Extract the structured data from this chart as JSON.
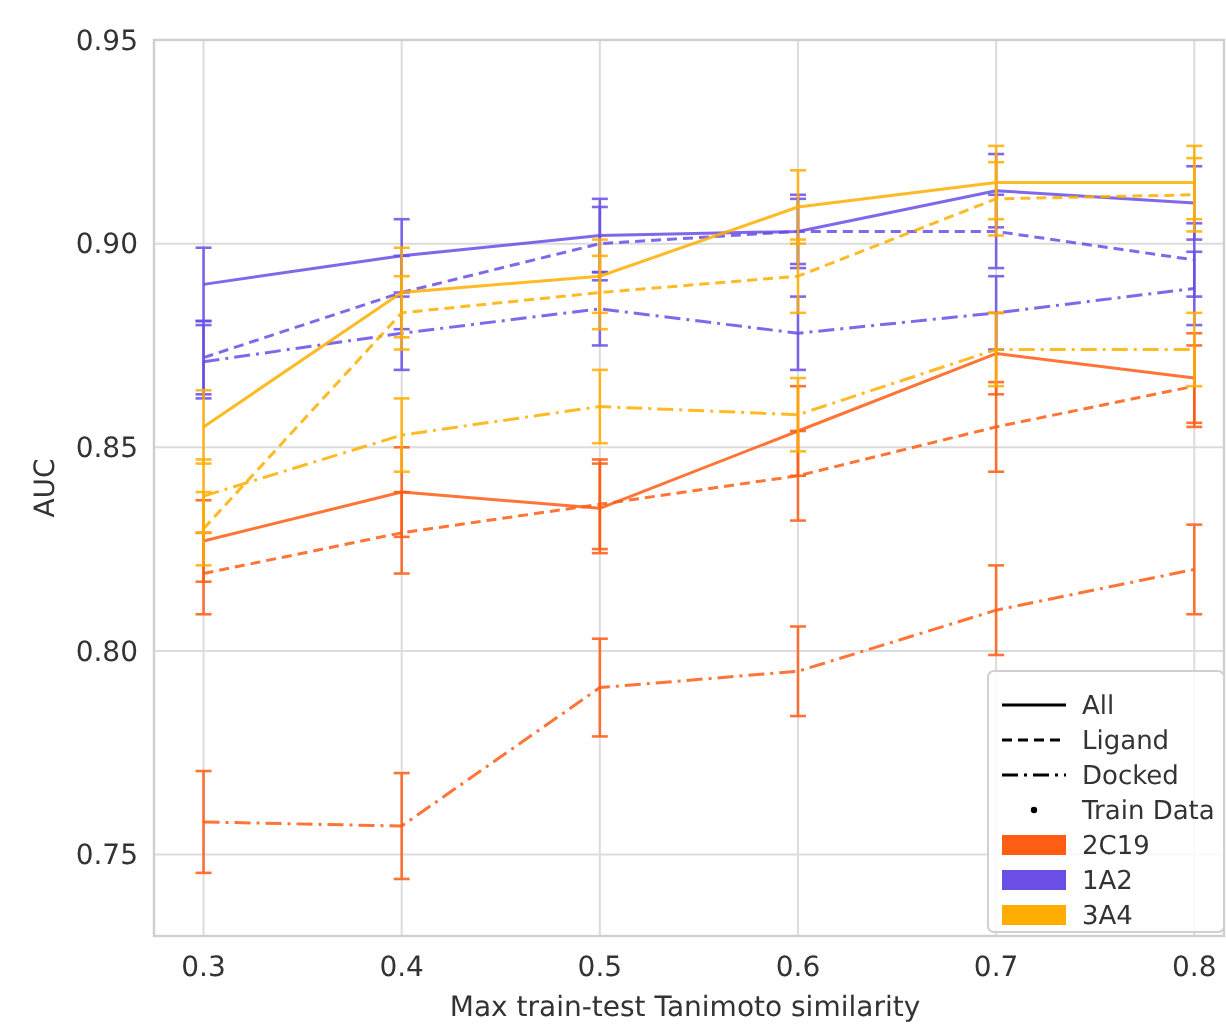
{
  "chart_data": {
    "type": "line",
    "xlabel": "Max train-test Tanimoto similarity",
    "ylabel": "AUC",
    "x": [
      0.3,
      0.4,
      0.5,
      0.6,
      0.7,
      0.8
    ],
    "xlim": [
      0.275,
      0.815
    ],
    "xticks": [
      0.3,
      0.4,
      0.5,
      0.6,
      0.7,
      0.8
    ],
    "ylim": [
      0.73,
      0.95
    ],
    "yticks": [
      {
        "value": 0.75,
        "label": "0.75"
      },
      {
        "value": 0.8,
        "label": "0.80"
      },
      {
        "value": 0.85,
        "label": "0.85"
      },
      {
        "value": 0.9,
        "label": "0.90"
      },
      {
        "value": 0.95,
        "label": "0.95"
      }
    ],
    "grid": true,
    "legend": "bottom right",
    "series": [
      {
        "color": "#ff5c14",
        "line_style": "solid",
        "values": [
          0.827,
          0.839,
          0.835,
          0.854,
          0.873,
          0.867
        ],
        "errors": [
          0.01,
          0.011,
          0.011,
          0.011,
          0.01,
          0.011
        ]
      },
      {
        "color": "#ff5c14",
        "line_style": "dashed",
        "values": [
          0.819,
          0.829,
          0.836,
          0.843,
          0.855,
          0.865
        ],
        "errors": [
          0.01,
          0.01,
          0.011,
          0.011,
          0.011,
          0.01
        ]
      },
      {
        "color": "#ff5c14",
        "line_style": "dashdot",
        "values": [
          0.758,
          0.757,
          0.791,
          0.795,
          0.81,
          0.82
        ],
        "errors": [
          0.0125,
          0.013,
          0.012,
          0.011,
          0.011,
          0.011
        ]
      },
      {
        "color": "#6a4ee6",
        "line_style": "solid",
        "values": [
          0.89,
          0.897,
          0.902,
          0.903,
          0.913,
          0.91
        ],
        "errors": [
          0.009,
          0.009,
          0.009,
          0.009,
          0.009,
          0.009
        ]
      },
      {
        "color": "#6a4ee6",
        "line_style": "dashed",
        "values": [
          0.872,
          0.888,
          0.9,
          0.903,
          0.903,
          0.896
        ],
        "errors": [
          0.009,
          0.009,
          0.009,
          0.008,
          0.009,
          0.009
        ]
      },
      {
        "color": "#6a4ee6",
        "line_style": "dashdot",
        "values": [
          0.871,
          0.878,
          0.884,
          0.878,
          0.883,
          0.889
        ],
        "errors": [
          0.009,
          0.009,
          0.009,
          0.009,
          0.009,
          0.009
        ]
      },
      {
        "color": "#ffae00",
        "line_style": "solid",
        "values": [
          0.855,
          0.888,
          0.892,
          0.909,
          0.915,
          0.915
        ],
        "errors": [
          0.009,
          0.011,
          0.009,
          0.009,
          0.009,
          0.009
        ]
      },
      {
        "color": "#ffae00",
        "line_style": "dashed",
        "values": [
          0.83,
          0.883,
          0.888,
          0.892,
          0.911,
          0.912
        ],
        "errors": [
          0.009,
          0.009,
          0.009,
          0.009,
          0.009,
          0.009
        ]
      },
      {
        "color": "#ffae00",
        "line_style": "dashdot",
        "values": [
          0.838,
          0.853,
          0.86,
          0.858,
          0.874,
          0.874
        ],
        "errors": [
          0.009,
          0.009,
          0.009,
          0.009,
          0.009,
          0.009
        ]
      },
      {
        "name": "All",
        "color": "#000000",
        "line_style": "solid",
        "values": [
          null,
          null,
          null,
          null,
          null,
          null
        ]
      },
      {
        "name": "Ligand",
        "color": "#000000",
        "line_style": "dashed",
        "values": [
          null,
          null,
          null,
          null,
          null,
          null
        ]
      },
      {
        "name": "Docked",
        "color": "#000000",
        "line_style": "dashdot",
        "values": [
          null,
          null,
          null,
          null,
          null,
          null
        ]
      },
      {
        "name": "Train Data",
        "type": "scatter",
        "marker": "circle",
        "color": "#000000",
        "values": [
          null,
          null,
          null,
          null,
          null,
          null
        ]
      },
      {
        "name": "2C19",
        "type": "area",
        "color": "#ff5c14",
        "values": [
          null,
          null,
          null,
          null,
          null,
          null
        ]
      },
      {
        "name": "1A2",
        "type": "area",
        "color": "#6a4ee6",
        "values": [
          null,
          null,
          null,
          null,
          null,
          null
        ]
      },
      {
        "name": "3A4",
        "type": "area",
        "color": "#ffae00",
        "values": [
          null,
          null,
          null,
          null,
          null,
          null
        ]
      }
    ]
  }
}
